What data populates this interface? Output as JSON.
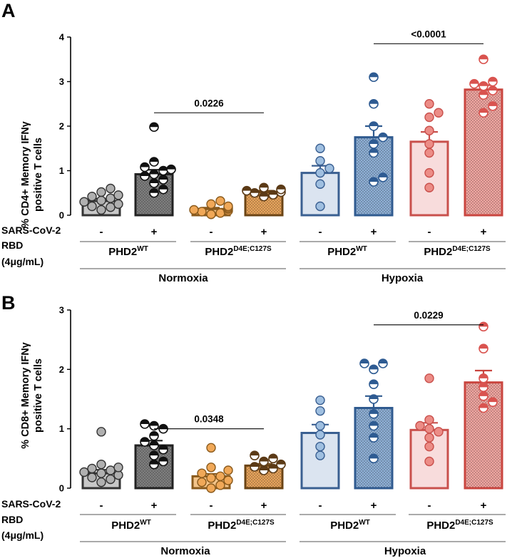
{
  "chart_data": [
    {
      "type": "bar",
      "panel": "A",
      "ylabel_line1": "% CD4+ Memory IFNγ",
      "ylabel_line2": "positive T cells",
      "ylim": [
        0,
        4
      ],
      "yticks": [
        "0",
        "1",
        "2",
        "3",
        "4"
      ],
      "categories": [
        {
          "name": "PHD2WT Normoxia -",
          "mean": 0.32,
          "sem": 0.05,
          "points": [
            0.12,
            0.18,
            0.2,
            0.25,
            0.3,
            0.33,
            0.38,
            0.42,
            0.45,
            0.52,
            0.6
          ],
          "fill": "#c8c8c8",
          "edge": "#333333",
          "pattern": false,
          "dot": "#b0b0b0",
          "half": false
        },
        {
          "name": "PHD2WT Normoxia +",
          "mean": 0.92,
          "sem": 0.1,
          "points": [
            0.5,
            0.58,
            0.72,
            0.8,
            0.88,
            0.92,
            1.0,
            1.03,
            1.08,
            1.2,
            1.98
          ],
          "fill": "#7f7f7f",
          "edge": "#222222",
          "pattern": true,
          "dot": "#111111",
          "half": true
        },
        {
          "name": "PHD2D4E;C127S Normoxia -",
          "mean": 0.14,
          "sem": 0.03,
          "points": [
            0.02,
            0.05,
            0.08,
            0.1,
            0.12,
            0.14,
            0.17,
            0.2,
            0.25,
            0.32
          ],
          "fill": "#f3c48a",
          "edge": "#8a5a1c",
          "pattern": false,
          "dot": "#f0a858",
          "half": false
        },
        {
          "name": "PHD2D4E;C127S Normoxia +",
          "mean": 0.52,
          "sem": 0.03,
          "points": [
            0.42,
            0.46,
            0.5,
            0.52,
            0.55,
            0.58,
            0.62
          ],
          "fill": "#e7a45c",
          "edge": "#6b4415",
          "pattern": true,
          "dot": "#5b3a16",
          "half": true
        },
        {
          "name": "PHD2WT Hypoxia -",
          "mean": 0.95,
          "sem": 0.16,
          "points": [
            0.2,
            0.7,
            0.95,
            1.05,
            1.22,
            1.5
          ],
          "fill": "#dbe4f0",
          "edge": "#3a5f91",
          "pattern": false,
          "dot": "#9fbfe0",
          "half": false
        },
        {
          "name": "PHD2WT Hypoxia +",
          "mean": 1.75,
          "sem": 0.25,
          "points": [
            0.75,
            0.85,
            1.4,
            1.6,
            1.75,
            2.0,
            2.5,
            3.1
          ],
          "fill": "#8fb0d6",
          "edge": "#2f5a8f",
          "pattern": true,
          "dot": "#2e5b92",
          "half": true
        },
        {
          "name": "PHD2D4E;C127S Hypoxia -",
          "mean": 1.65,
          "sem": 0.22,
          "points": [
            0.62,
            0.95,
            1.4,
            1.6,
            1.9,
            2.2,
            2.3,
            2.5
          ],
          "fill": "#f8dcdc",
          "edge": "#c9504c",
          "pattern": false,
          "dot": "#ec8c86",
          "half": false
        },
        {
          "name": "PHD2D4E;C127S Hypoxia +",
          "mean": 2.82,
          "sem": 0.1,
          "points": [
            2.3,
            2.45,
            2.7,
            2.8,
            2.9,
            2.95,
            3.0,
            3.5
          ],
          "fill": "#f0a6a1",
          "edge": "#c9453f",
          "pattern": true,
          "dot": "#d9534f",
          "half": true
        }
      ],
      "comparisons": [
        {
          "from": 1,
          "to": 3,
          "y": 2.3,
          "label": "0.0226"
        },
        {
          "from": 5,
          "to": 7,
          "y": 3.85,
          "label": "<0.0001"
        }
      ]
    },
    {
      "type": "bar",
      "panel": "B",
      "ylabel_line1": "% CD8+ Memory IFNγ",
      "ylabel_line2": "positive T cells",
      "ylim": [
        0,
        3
      ],
      "yticks": [
        "0",
        "1",
        "2",
        "3"
      ],
      "categories": [
        {
          "name": "PHD2WT Normoxia -",
          "mean": 0.25,
          "sem": 0.06,
          "points": [
            0.1,
            0.15,
            0.18,
            0.22,
            0.25,
            0.27,
            0.3,
            0.33,
            0.35,
            0.4,
            0.95
          ],
          "fill": "#c8c8c8",
          "edge": "#333333",
          "pattern": false,
          "dot": "#b0b0b0",
          "half": false
        },
        {
          "name": "PHD2WT Normoxia +",
          "mean": 0.72,
          "sem": 0.08,
          "points": [
            0.4,
            0.45,
            0.55,
            0.65,
            0.72,
            0.78,
            0.88,
            1.0,
            1.05,
            1.08
          ],
          "fill": "#7f7f7f",
          "edge": "#222222",
          "pattern": true,
          "dot": "#111111",
          "half": true
        },
        {
          "name": "PHD2D4E;C127S Normoxia -",
          "mean": 0.2,
          "sem": 0.04,
          "points": [
            0.0,
            0.05,
            0.1,
            0.13,
            0.17,
            0.2,
            0.25,
            0.3,
            0.35,
            0.68
          ],
          "fill": "#f3c48a",
          "edge": "#8a5a1c",
          "pattern": false,
          "dot": "#f0a858",
          "half": false
        },
        {
          "name": "PHD2D4E;C127S Normoxia +",
          "mean": 0.38,
          "sem": 0.03,
          "points": [
            0.3,
            0.33,
            0.36,
            0.4,
            0.45,
            0.5,
            0.55
          ],
          "fill": "#e7a45c",
          "edge": "#6b4415",
          "pattern": true,
          "dot": "#5b3a16",
          "half": true
        },
        {
          "name": "PHD2WT Hypoxia -",
          "mean": 0.93,
          "sem": 0.14,
          "points": [
            0.55,
            0.7,
            0.9,
            1.05,
            1.3,
            1.48
          ],
          "fill": "#dbe4f0",
          "edge": "#3a5f91",
          "pattern": false,
          "dot": "#9fbfe0",
          "half": false
        },
        {
          "name": "PHD2WT Hypoxia +",
          "mean": 1.35,
          "sem": 0.2,
          "points": [
            0.5,
            0.85,
            1.05,
            1.25,
            1.5,
            1.75,
            2.0,
            2.1,
            2.1
          ],
          "fill": "#8fb0d6",
          "edge": "#2f5a8f",
          "pattern": true,
          "dot": "#2e5b92",
          "half": true
        },
        {
          "name": "PHD2D4E;C127S Hypoxia -",
          "mean": 0.98,
          "sem": 0.12,
          "points": [
            0.45,
            0.7,
            0.85,
            0.95,
            1.0,
            1.05,
            1.15,
            1.85
          ],
          "fill": "#f8dcdc",
          "edge": "#c9504c",
          "pattern": false,
          "dot": "#ec8c86",
          "half": false
        },
        {
          "name": "PHD2D4E;C127S Hypoxia +",
          "mean": 1.78,
          "sem": 0.2,
          "points": [
            1.35,
            1.45,
            1.55,
            1.7,
            1.85,
            2.35,
            2.72
          ],
          "fill": "#f0a6a1",
          "edge": "#c9453f",
          "pattern": true,
          "dot": "#d9534f",
          "half": true
        }
      ],
      "comparisons": [
        {
          "from": 1,
          "to": 3,
          "y": 1.0,
          "label": "0.0348"
        },
        {
          "from": 5,
          "to": 7,
          "y": 2.75,
          "label": "0.0229"
        }
      ]
    }
  ],
  "labels": {
    "sars": "SARS-CoV-2",
    "rbd": "RBD",
    "conc_prefix": "(4",
    "conc_mu": "μ",
    "conc_suffix": "g/mL)",
    "minus": "-",
    "plus": "+",
    "wt_base": "PHD2",
    "wt_sup": "WT",
    "mut_base": "PHD2",
    "mut_sup": "D4E;C127S",
    "normoxia": "Normoxia",
    "hypoxia": "Hypoxia"
  }
}
